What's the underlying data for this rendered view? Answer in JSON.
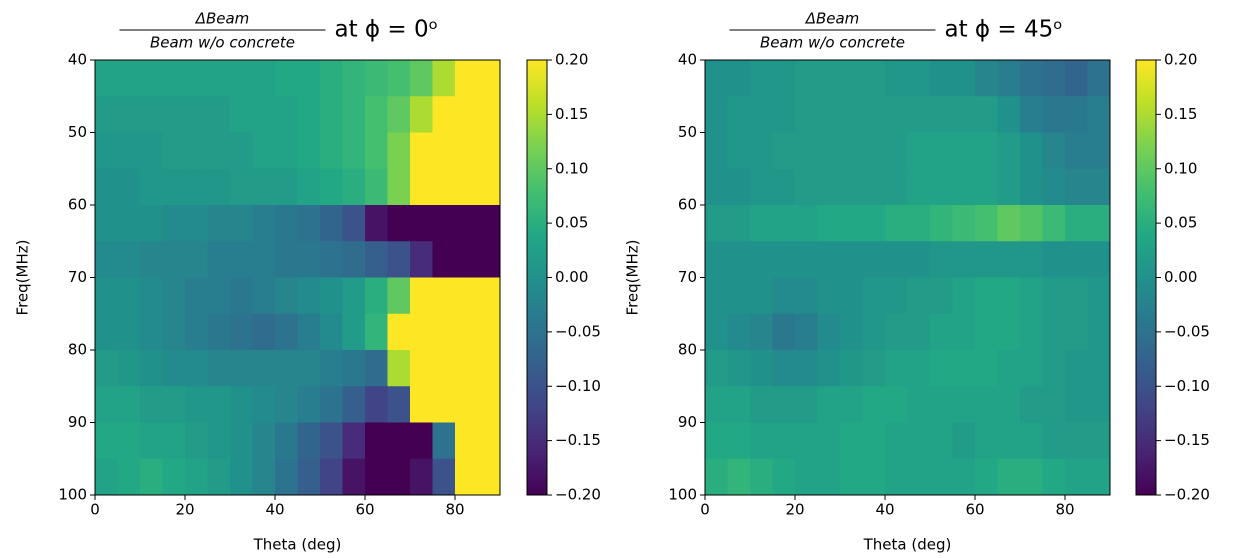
{
  "chart_data": [
    {
      "type": "heatmap",
      "title": {
        "numerator": "ΔBeam",
        "denominator": "Beam w/o concrete",
        "text": "at ϕ = 0ᵒ"
      },
      "xlabel": "Theta (deg)",
      "ylabel": "Freq(MHz)",
      "colormap": "viridis",
      "x_bins": [
        0,
        5,
        10,
        15,
        20,
        25,
        30,
        35,
        40,
        45,
        50,
        55,
        60,
        65,
        70,
        75,
        80,
        85,
        90
      ],
      "y_bins": [
        40,
        45,
        50,
        55,
        60,
        65,
        70,
        75,
        80,
        85,
        90,
        95,
        100
      ],
      "z": [
        [
          0.03,
          0.03,
          0.03,
          0.03,
          0.03,
          0.03,
          0.03,
          0.03,
          0.04,
          0.04,
          0.05,
          0.06,
          0.07,
          0.08,
          0.1,
          0.15,
          0.2,
          0.2
        ],
        [
          0.02,
          0.02,
          0.02,
          0.02,
          0.02,
          0.02,
          0.03,
          0.03,
          0.03,
          0.04,
          0.05,
          0.06,
          0.08,
          0.1,
          0.15,
          0.2,
          0.2,
          0.2
        ],
        [
          0.01,
          0.01,
          0.01,
          0.02,
          0.02,
          0.02,
          0.02,
          0.03,
          0.03,
          0.04,
          0.05,
          0.06,
          0.08,
          0.12,
          0.2,
          0.2,
          0.2,
          0.2
        ],
        [
          0.0,
          0.0,
          0.01,
          0.01,
          0.01,
          0.01,
          0.02,
          0.02,
          0.02,
          0.03,
          0.04,
          0.05,
          0.07,
          0.12,
          0.2,
          0.2,
          0.2,
          0.2
        ],
        [
          0.0,
          0.0,
          0.0,
          -0.01,
          -0.01,
          -0.02,
          -0.02,
          -0.03,
          -0.04,
          -0.05,
          -0.07,
          -0.1,
          -0.18,
          -0.2,
          -0.2,
          -0.2,
          -0.2,
          -0.2
        ],
        [
          -0.01,
          -0.01,
          -0.02,
          -0.02,
          -0.02,
          -0.03,
          -0.03,
          -0.03,
          -0.04,
          -0.04,
          -0.05,
          -0.06,
          -0.08,
          -0.1,
          -0.15,
          -0.2,
          -0.2,
          -0.2
        ],
        [
          0.0,
          0.0,
          -0.01,
          -0.02,
          -0.03,
          -0.03,
          -0.04,
          -0.03,
          -0.02,
          -0.01,
          0.0,
          0.02,
          0.05,
          0.1,
          0.2,
          0.2,
          0.2,
          0.2
        ],
        [
          0.0,
          0.0,
          -0.01,
          -0.02,
          -0.03,
          -0.04,
          -0.05,
          -0.06,
          -0.05,
          -0.03,
          -0.01,
          0.02,
          0.06,
          0.2,
          0.2,
          0.2,
          0.2,
          0.2
        ],
        [
          0.02,
          0.01,
          0.0,
          -0.01,
          -0.01,
          -0.02,
          -0.02,
          -0.02,
          -0.02,
          -0.02,
          -0.03,
          -0.04,
          -0.06,
          0.15,
          0.2,
          0.2,
          0.2,
          0.2
        ],
        [
          0.03,
          0.03,
          0.02,
          0.02,
          0.01,
          0.01,
          0.0,
          -0.01,
          -0.02,
          -0.03,
          -0.05,
          -0.08,
          -0.12,
          -0.1,
          0.2,
          0.2,
          0.2,
          0.2
        ],
        [
          0.04,
          0.04,
          0.03,
          0.03,
          0.02,
          0.01,
          0.0,
          -0.02,
          -0.04,
          -0.07,
          -0.1,
          -0.15,
          -0.2,
          -0.2,
          -0.2,
          -0.05,
          0.2,
          0.2
        ],
        [
          0.03,
          0.04,
          0.05,
          0.04,
          0.03,
          0.02,
          0.0,
          -0.02,
          -0.05,
          -0.08,
          -0.12,
          -0.18,
          -0.2,
          -0.2,
          -0.18,
          -0.1,
          0.2,
          0.2
        ]
      ],
      "xlim": [
        0,
        90
      ],
      "ylim": [
        100,
        40
      ],
      "xticks": [
        0,
        20,
        40,
        60,
        80
      ],
      "yticks": [
        40,
        50,
        60,
        70,
        80,
        90,
        100
      ],
      "clim": [
        -0.2,
        0.2
      ],
      "cticks": [
        {
          "value": 0.2,
          "label": "0.20"
        },
        {
          "value": 0.15,
          "label": "0.15"
        },
        {
          "value": 0.1,
          "label": "0.10"
        },
        {
          "value": 0.05,
          "label": "0.05"
        },
        {
          "value": 0,
          "label": "0.00"
        },
        {
          "value": -0.05,
          "label": "−0.05"
        },
        {
          "value": -0.1,
          "label": "−0.10"
        },
        {
          "value": -0.15,
          "label": "−0.15"
        },
        {
          "value": -0.2,
          "label": "−0.20"
        }
      ]
    },
    {
      "type": "heatmap",
      "title": {
        "numerator": "ΔBeam",
        "denominator": "Beam w/o concrete",
        "text": "at ϕ = 45ᵒ"
      },
      "xlabel": "Theta (deg)",
      "ylabel": "Freq(MHz)",
      "colormap": "viridis",
      "x_bins": [
        0,
        5,
        10,
        15,
        20,
        25,
        30,
        35,
        40,
        45,
        50,
        55,
        60,
        65,
        70,
        75,
        80,
        85,
        90
      ],
      "y_bins": [
        40,
        45,
        50,
        55,
        60,
        65,
        70,
        75,
        80,
        85,
        90,
        95,
        100
      ],
      "z": [
        [
          0.0,
          0.0,
          0.01,
          0.01,
          0.02,
          0.02,
          0.02,
          0.02,
          0.01,
          0.01,
          0.0,
          0.0,
          -0.02,
          -0.03,
          -0.05,
          -0.06,
          -0.07,
          -0.05
        ],
        [
          0.0,
          0.01,
          0.01,
          0.01,
          0.02,
          0.02,
          0.02,
          0.02,
          0.02,
          0.02,
          0.02,
          0.02,
          0.02,
          0.0,
          -0.03,
          -0.04,
          -0.04,
          -0.03
        ],
        [
          0.0,
          0.01,
          0.01,
          0.02,
          0.02,
          0.02,
          0.02,
          0.02,
          0.02,
          0.03,
          0.03,
          0.03,
          0.03,
          0.02,
          0.0,
          -0.02,
          -0.03,
          -0.03
        ],
        [
          0.0,
          0.0,
          0.01,
          0.01,
          0.02,
          0.02,
          0.02,
          0.02,
          0.02,
          0.03,
          0.03,
          0.03,
          0.03,
          0.02,
          0.0,
          -0.01,
          -0.02,
          -0.02
        ],
        [
          0.02,
          0.02,
          0.03,
          0.03,
          0.03,
          0.04,
          0.04,
          0.04,
          0.05,
          0.05,
          0.06,
          0.07,
          0.08,
          0.1,
          0.09,
          0.07,
          0.05,
          0.05
        ],
        [
          0.0,
          0.0,
          0.0,
          0.0,
          0.0,
          0.0,
          0.0,
          0.0,
          0.0,
          0.0,
          0.01,
          0.01,
          0.01,
          0.01,
          0.01,
          0.0,
          0.0,
          0.0
        ],
        [
          0.0,
          0.0,
          0.0,
          -0.01,
          -0.01,
          0.0,
          0.0,
          0.01,
          0.01,
          0.02,
          0.02,
          0.03,
          0.04,
          0.04,
          0.03,
          0.02,
          0.02,
          0.01
        ],
        [
          0.0,
          -0.01,
          -0.02,
          -0.04,
          -0.03,
          -0.01,
          0.0,
          0.01,
          0.02,
          0.02,
          0.03,
          0.03,
          0.04,
          0.04,
          0.03,
          0.02,
          0.02,
          0.01
        ],
        [
          0.02,
          0.01,
          0.0,
          -0.01,
          -0.01,
          0.0,
          0.01,
          0.02,
          0.03,
          0.03,
          0.04,
          0.04,
          0.04,
          0.03,
          0.03,
          0.02,
          0.01,
          0.01
        ],
        [
          0.03,
          0.03,
          0.02,
          0.02,
          0.02,
          0.03,
          0.03,
          0.04,
          0.04,
          0.03,
          0.03,
          0.03,
          0.03,
          0.03,
          0.02,
          0.02,
          0.01,
          0.01
        ],
        [
          0.04,
          0.04,
          0.03,
          0.03,
          0.03,
          0.03,
          0.04,
          0.04,
          0.03,
          0.03,
          0.03,
          0.02,
          0.03,
          0.03,
          0.03,
          0.02,
          0.02,
          0.02
        ],
        [
          0.05,
          0.06,
          0.05,
          0.04,
          0.03,
          0.03,
          0.04,
          0.04,
          0.03,
          0.03,
          0.03,
          0.03,
          0.04,
          0.05,
          0.05,
          0.04,
          0.03,
          0.03
        ]
      ],
      "xlim": [
        0,
        90
      ],
      "ylim": [
        100,
        40
      ],
      "xticks": [
        0,
        20,
        40,
        60,
        80
      ],
      "yticks": [
        40,
        50,
        60,
        70,
        80,
        90,
        100
      ],
      "clim": [
        -0.2,
        0.2
      ],
      "cticks": [
        {
          "value": 0.2,
          "label": "0.20"
        },
        {
          "value": 0.15,
          "label": "0.15"
        },
        {
          "value": 0.1,
          "label": "0.10"
        },
        {
          "value": 0.05,
          "label": "0.05"
        },
        {
          "value": 0,
          "label": "0.00"
        },
        {
          "value": -0.05,
          "label": "−0.05"
        },
        {
          "value": -0.1,
          "label": "−0.10"
        },
        {
          "value": -0.15,
          "label": "−0.15"
        },
        {
          "value": -0.2,
          "label": "−0.20"
        }
      ]
    }
  ]
}
